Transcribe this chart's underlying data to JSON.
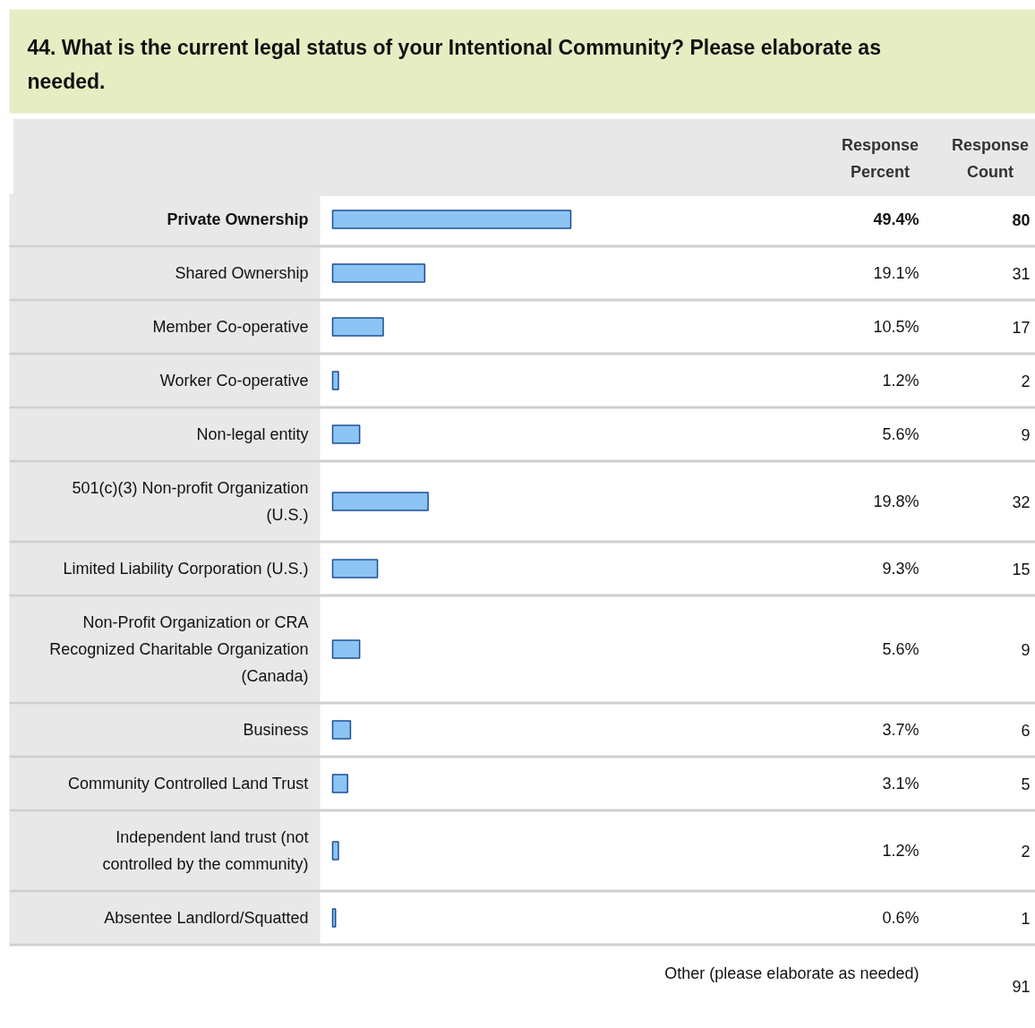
{
  "chart_data": {
    "type": "bar",
    "orientation": "horizontal",
    "title": "44. What is the current legal status of your Intentional Community? Please elaborate as needed.",
    "categories": [
      "Private Ownership",
      "Shared Ownership",
      "Member Co-operative",
      "Worker Co-operative",
      "Non-legal entity",
      "501(c)(3) Non-profit Organization (U.S.)",
      "Limited Liability Corporation (U.S.)",
      "Non-Profit Organization or CRA Recognized Charitable Organization (Canada)",
      "Business",
      "Community Controlled Land Trust",
      "Independent land trust (not controlled by the community)",
      "Absentee Landlord/Squatted"
    ],
    "values": [
      49.4,
      19.1,
      10.5,
      1.2,
      5.6,
      19.8,
      9.3,
      5.6,
      3.7,
      3.1,
      1.2,
      0.6
    ],
    "value_labels": [
      "49.4%",
      "19.1%",
      "10.5%",
      "1.2%",
      "5.6%",
      "19.8%",
      "9.3%",
      "5.6%",
      "3.7%",
      "3.1%",
      "1.2%",
      "0.6%"
    ],
    "color": "#8cc4f4",
    "annotations": [
      "Response Percent",
      "Response Count",
      "80",
      "31",
      "17",
      "2",
      "9",
      "32",
      "15",
      "9",
      "6",
      "5",
      "2",
      "1",
      "Other (please elaborate as needed)",
      "91"
    ]
  }
}
